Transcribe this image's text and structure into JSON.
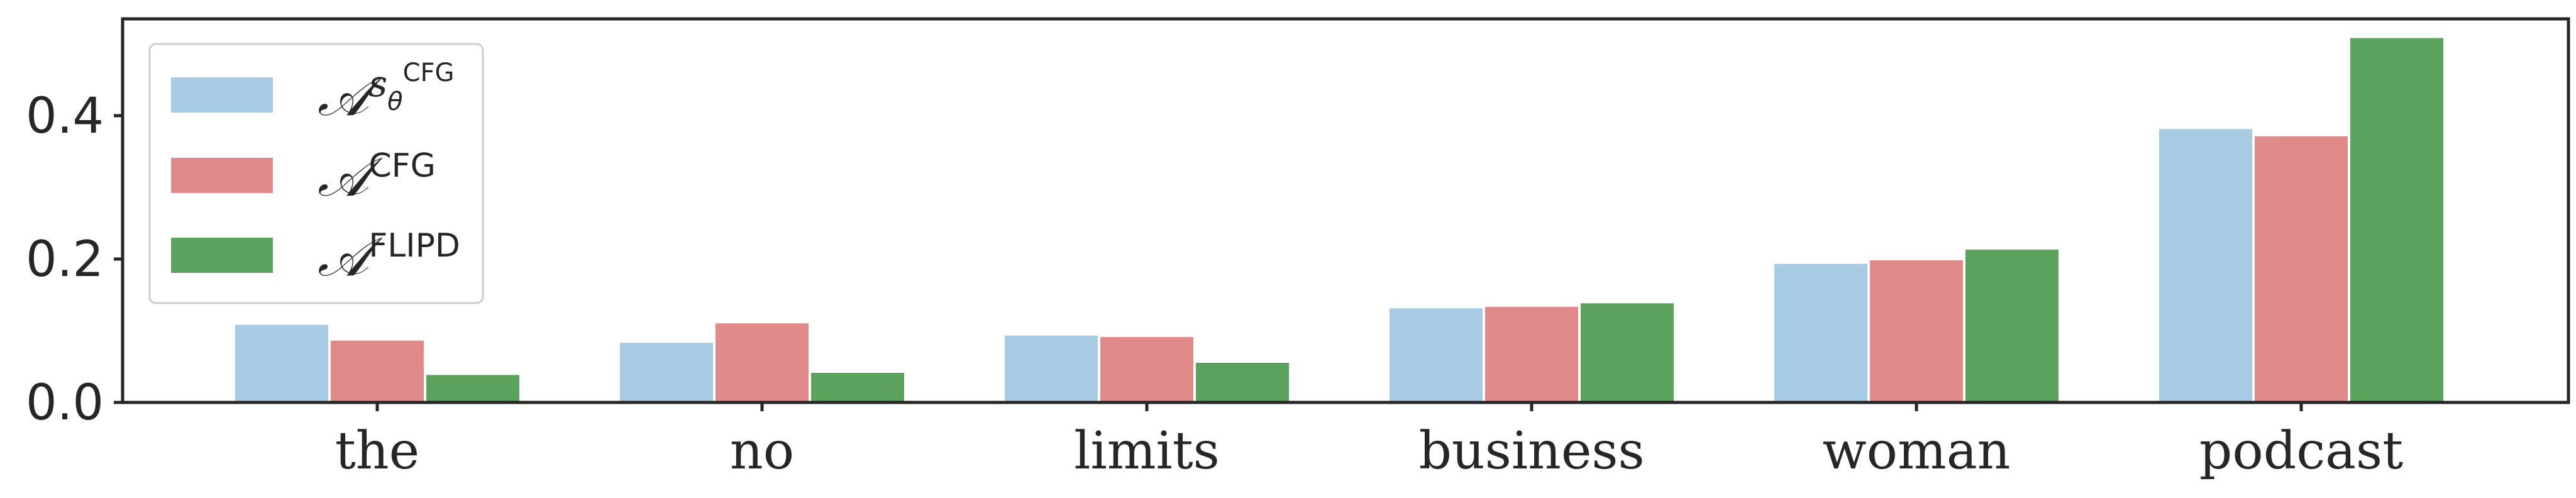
{
  "chart_data": {
    "type": "bar",
    "categories": [
      "the",
      "no",
      "limits",
      "business",
      "woman",
      "podcast"
    ],
    "series": [
      {
        "name": "𝒜^{s_θ^CFG}",
        "legend_main": "𝒜",
        "legend_sup": "s",
        "legend_sub": "θ",
        "legend_subsup": "CFG",
        "color": "#a8cbe4",
        "values": [
          0.11,
          0.085,
          0.095,
          0.133,
          0.195,
          0.383
        ]
      },
      {
        "name": "𝒜^CFG",
        "legend_main": "𝒜",
        "legend_sup": "CFG",
        "color": "#e08a8a",
        "values": [
          0.088,
          0.112,
          0.093,
          0.135,
          0.2,
          0.373
        ]
      },
      {
        "name": "𝒜^FLIPD",
        "legend_main": "𝒜",
        "legend_sup": "FLIPD",
        "color": "#5ba25d",
        "values": [
          0.04,
          0.043,
          0.057,
          0.14,
          0.215,
          0.51
        ]
      }
    ],
    "y_ticks": [
      "0.0",
      "0.2",
      "0.4"
    ],
    "ylim": [
      0,
      0.535
    ],
    "xlabel": "",
    "ylabel": "",
    "title": "",
    "grid": false,
    "legend_position": "top-left"
  }
}
